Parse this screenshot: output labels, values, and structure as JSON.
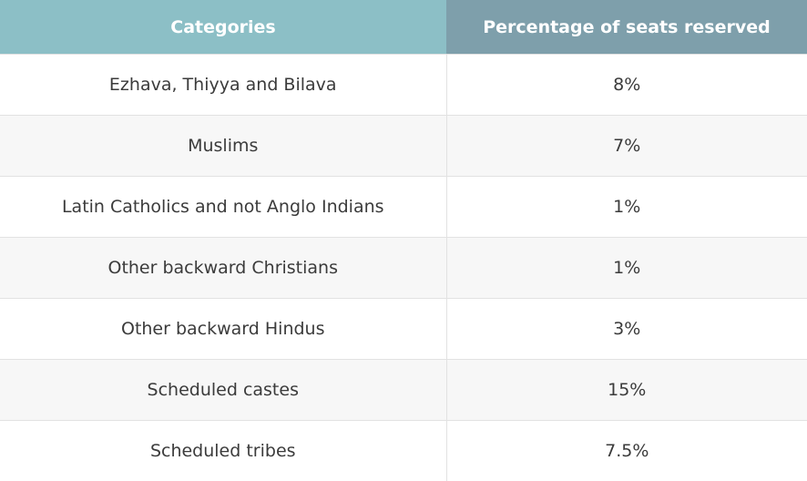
{
  "table": {
    "headers": [
      "Categories",
      "Percentage of seats reserved"
    ],
    "rows": [
      {
        "category": "Ezhava, Thiyya and Bilava",
        "percentage": "8%"
      },
      {
        "category": "Muslims",
        "percentage": "7%"
      },
      {
        "category": "Latin Catholics and not Anglo Indians",
        "percentage": "1%"
      },
      {
        "category": "Other backward Christians",
        "percentage": "1%"
      },
      {
        "category": "Other backward Hindus",
        "percentage": "3%"
      },
      {
        "category": "Scheduled castes",
        "percentage": "15%"
      },
      {
        "category": "Scheduled tribes",
        "percentage": "7.5%"
      }
    ]
  },
  "colors": {
    "header_left": "#8cbfc6",
    "header_right": "#7e9fab",
    "row_alt": "#f7f7f7",
    "text": "#3b3b3b"
  }
}
